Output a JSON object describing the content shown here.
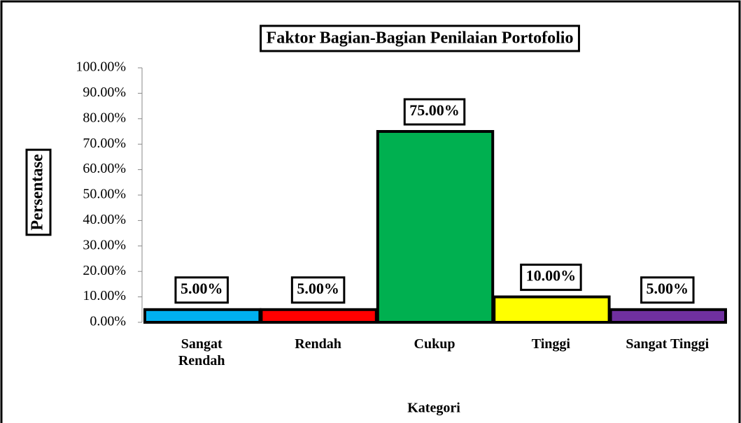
{
  "chart_data": {
    "type": "bar",
    "title": "Faktor Bagian-Bagian Penilaian Portofolio",
    "x_label": "Kategori",
    "y_label": "Persentase",
    "categories": [
      "Sangat Rendah",
      "Rendah",
      "Cukup",
      "Tinggi",
      "Sangat Tinggi"
    ],
    "values": [
      5,
      5,
      75,
      10,
      5
    ],
    "value_labels": [
      "5.00%",
      "5.00%",
      "75.00%",
      "10.00%",
      "5.00%"
    ],
    "colors": [
      "#00b0f0",
      "#ff0000",
      "#00b050",
      "#ffff00",
      "#7030a0"
    ],
    "ylim": [
      0,
      100
    ],
    "yticks": [
      {
        "value": 0,
        "label": "0.00%"
      },
      {
        "value": 10,
        "label": "10.00%"
      },
      {
        "value": 20,
        "label": "20.00%"
      },
      {
        "value": 30,
        "label": "30.00%"
      },
      {
        "value": 40,
        "label": "40.00%"
      },
      {
        "value": 50,
        "label": "50.00%"
      },
      {
        "value": 60,
        "label": "60.00%"
      },
      {
        "value": 70,
        "label": "70.00%"
      },
      {
        "value": 80,
        "label": "80.00%"
      },
      {
        "value": 90,
        "label": "90.00%"
      },
      {
        "value": 100,
        "label": "100.00%"
      }
    ],
    "grid": false
  }
}
